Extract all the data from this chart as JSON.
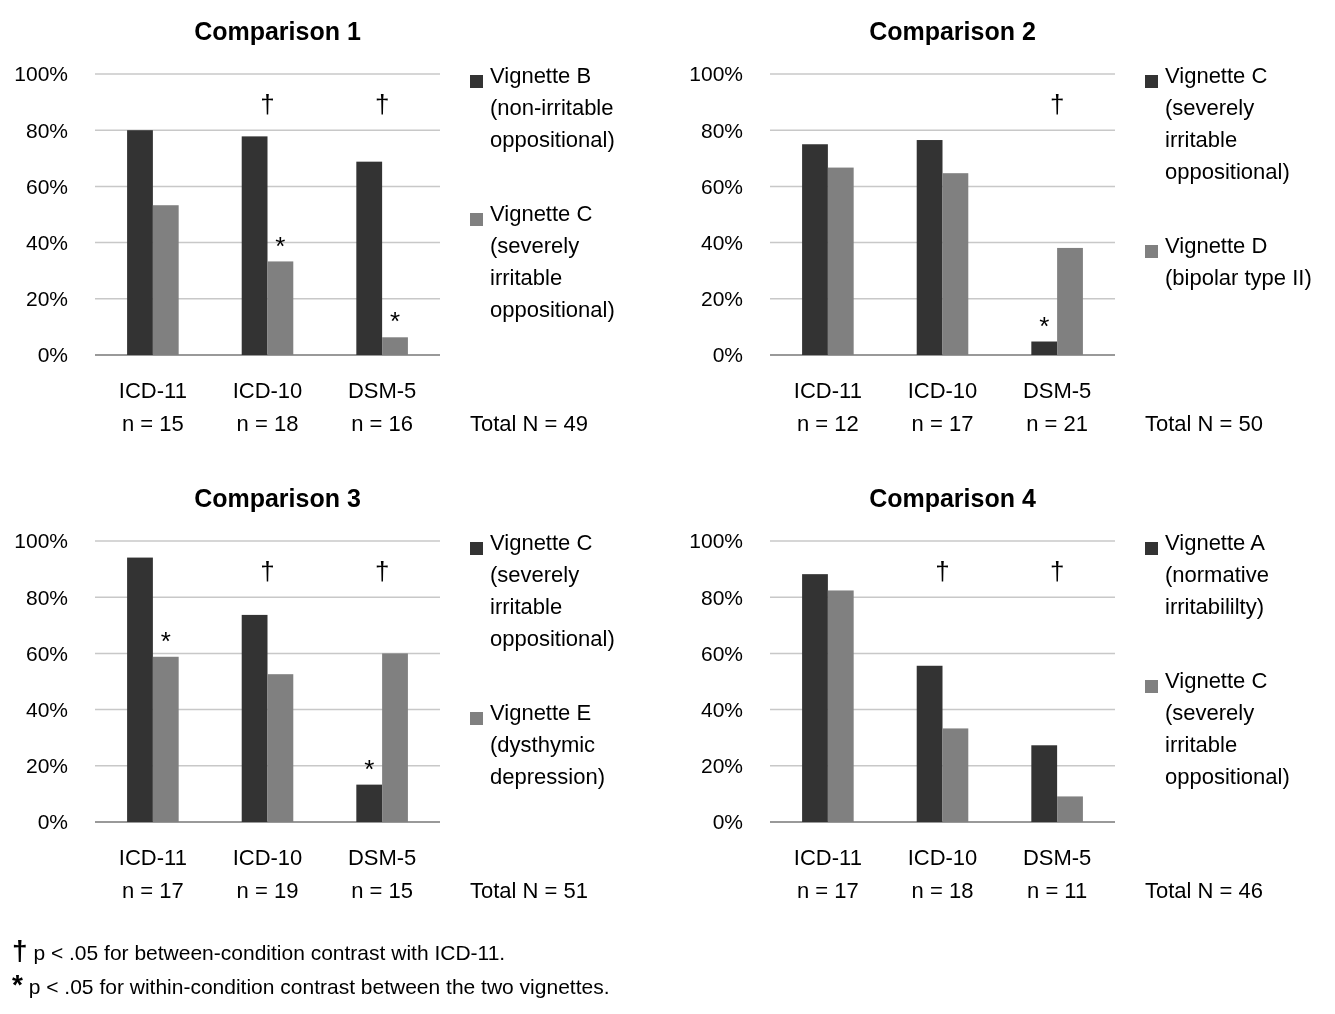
{
  "chart_data": [
    {
      "type": "bar",
      "title": "Comparison 1",
      "categories": [
        "ICD-11\nn = 15",
        "ICD-10\nn = 18",
        "DSM-5\nn = 16"
      ],
      "ylim": [
        0,
        100
      ],
      "yticks": [
        {
          "value": 0,
          "label": "0%"
        },
        {
          "value": 20,
          "label": "20%"
        },
        {
          "value": 40,
          "label": "40%"
        },
        {
          "value": 60,
          "label": "60%"
        },
        {
          "value": 80,
          "label": "80%"
        },
        {
          "value": 100,
          "label": "100%"
        }
      ],
      "grid": "y",
      "legend": "right",
      "series": [
        {
          "name": "Vignette B\n(non-irritable\noppositional)",
          "color": "#333333",
          "values": [
            80,
            77.8,
            68.8
          ]
        },
        {
          "name": "Vignette C\n(severely\nirritable\noppositional)",
          "color": "#808080",
          "values": [
            53.3,
            33.3,
            6.3
          ]
        }
      ],
      "annotations": [
        "†",
        "†",
        {
          "text": "*",
          "x": "ICD-10\nn = 18",
          "y": 33.3
        },
        {
          "text": "*",
          "x": "DSM-5\nn = 16",
          "y": 6.3
        },
        "Total N = 49"
      ]
    },
    {
      "type": "bar",
      "title": "Comparison 2",
      "categories": [
        "ICD-11\nn = 12",
        "ICD-10\nn = 17",
        "DSM-5\nn = 21"
      ],
      "ylim": [
        0,
        100
      ],
      "yticks": [
        {
          "value": 0,
          "label": "0%"
        },
        {
          "value": 20,
          "label": "20%"
        },
        {
          "value": 40,
          "label": "40%"
        },
        {
          "value": 60,
          "label": "60%"
        },
        {
          "value": 80,
          "label": "80%"
        },
        {
          "value": 100,
          "label": "100%"
        }
      ],
      "grid": "y",
      "legend": "right",
      "series": [
        {
          "name": "Vignette C\n(severely\nirritable\noppositional)",
          "color": "#333333",
          "values": [
            75,
            76.5,
            4.8
          ]
        },
        {
          "name": "Vignette D\n(bipolar type II)",
          "color": "#808080",
          "values": [
            66.7,
            64.7,
            38.1
          ]
        }
      ],
      "annotations": [
        "†",
        {
          "text": "*",
          "x": "DSM-5\nn = 21",
          "y": 4.8
        },
        "Total N = 50"
      ]
    },
    {
      "type": "bar",
      "title": "Comparison 3",
      "categories": [
        "ICD-11\nn = 17",
        "ICD-10\nn = 19",
        "DSM-5\nn = 15"
      ],
      "ylim": [
        0,
        100
      ],
      "yticks": [
        {
          "value": 0,
          "label": "0%"
        },
        {
          "value": 20,
          "label": "20%"
        },
        {
          "value": 40,
          "label": "40%"
        },
        {
          "value": 60,
          "label": "60%"
        },
        {
          "value": 80,
          "label": "80%"
        },
        {
          "value": 100,
          "label": "100%"
        }
      ],
      "grid": "y",
      "legend": "right",
      "series": [
        {
          "name": "Vignette C\n(severely\nirritable\noppositional)",
          "color": "#333333",
          "values": [
            94.1,
            73.7,
            13.3
          ]
        },
        {
          "name": "Vignette E\n(dysthymic\ndepression)",
          "color": "#808080",
          "values": [
            58.8,
            52.6,
            60
          ]
        }
      ],
      "annotations": [
        "†",
        "†",
        {
          "text": "*",
          "x": "ICD-11\nn = 17",
          "y": 58.8
        },
        {
          "text": "*",
          "x": "DSM-5\nn = 15",
          "y": 13.3
        },
        "Total N = 51"
      ]
    },
    {
      "type": "bar",
      "title": "Comparison 4",
      "categories": [
        "ICD-11\nn = 17",
        "ICD-10\nn = 18",
        "DSM-5\nn = 11"
      ],
      "ylim": [
        0,
        100
      ],
      "yticks": [
        {
          "value": 0,
          "label": "0%"
        },
        {
          "value": 20,
          "label": "20%"
        },
        {
          "value": 40,
          "label": "40%"
        },
        {
          "value": 60,
          "label": "60%"
        },
        {
          "value": 80,
          "label": "80%"
        },
        {
          "value": 100,
          "label": "100%"
        }
      ],
      "grid": "y",
      "legend": "right",
      "series": [
        {
          "name": "Vignette A\n(normative\nirritabililty)",
          "color": "#333333",
          "values": [
            88.2,
            55.6,
            27.3
          ]
        },
        {
          "name": "Vignette C\n(severely\nirritable\noppositional)",
          "color": "#808080",
          "values": [
            82.4,
            33.3,
            9.1
          ]
        }
      ],
      "annotations": [
        "†",
        "†",
        "Total N = 46"
      ]
    },
    {
      "type": "other",
      "annotations": [
        "† p < .05 for between-condition contrast with ICD-11.",
        "* p < .05 for within-condition contrast between the two vignettes."
      ]
    }
  ]
}
